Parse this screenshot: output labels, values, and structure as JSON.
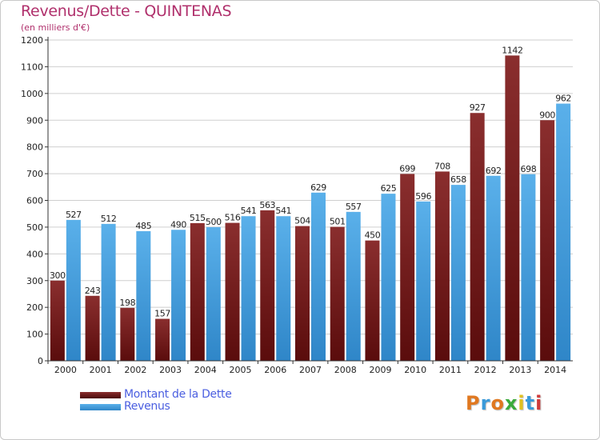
{
  "chart_data": {
    "type": "bar",
    "title": "Revenus/Dette - QUINTENAS",
    "subtitle": "(en milliers d'€)",
    "categories": [
      "2000",
      "2001",
      "2002",
      "2003",
      "2004",
      "2005",
      "2006",
      "2007",
      "2008",
      "2009",
      "2010",
      "2011",
      "2012",
      "2013",
      "2014"
    ],
    "series": [
      {
        "name": "Montant de la Dette",
        "color": "#6b1d1d",
        "values": [
          300,
          243,
          198,
          157,
          515,
          516,
          563,
          504,
          501,
          450,
          699,
          708,
          927,
          1142,
          900
        ]
      },
      {
        "name": "Revenus",
        "color": "#4aa3e0",
        "values": [
          527,
          512,
          485,
          490,
          500,
          541,
          541,
          629,
          557,
          625,
          596,
          658,
          692,
          698,
          962
        ]
      }
    ],
    "yticks": [
      0,
      100,
      200,
      300,
      400,
      500,
      600,
      700,
      800,
      900,
      1000,
      1100,
      1200
    ],
    "ylim": [
      0,
      1200
    ],
    "grid": true,
    "legend": "bottom-left"
  },
  "logo": {
    "text": "Proxiti",
    "colors": [
      "#e07820",
      "#3a9ad9",
      "#e07820",
      "#3aaa3a",
      "#e0c020",
      "#3a9ad9",
      "#d03a3a"
    ]
  }
}
